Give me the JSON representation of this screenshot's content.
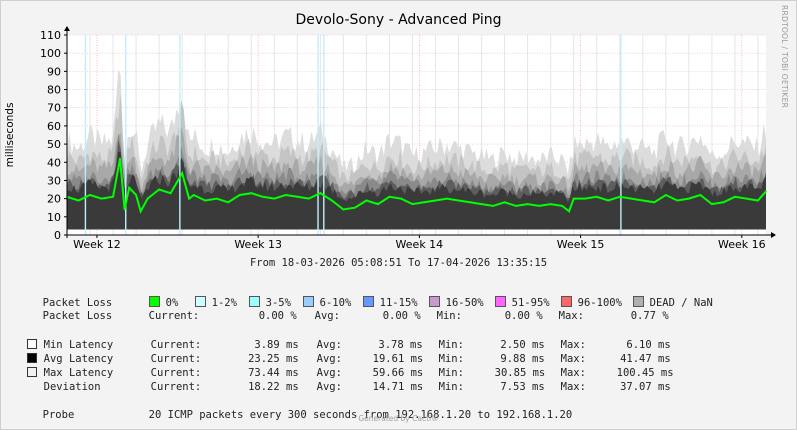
{
  "title": "Devolo-Sony - Advanced Ping",
  "side_credit": "RRDTOOL / TOBI OETIKER",
  "chart_data": {
    "type": "line",
    "title": "Devolo-Sony - Advanced Ping",
    "ylabel": "milliseconds",
    "ylim": [
      0,
      110
    ],
    "yticks": [
      0,
      10,
      20,
      30,
      40,
      50,
      60,
      70,
      80,
      90,
      100,
      110
    ],
    "xlim": [
      0,
      30.35
    ],
    "xticks": [
      {
        "label": "Week 12",
        "x": 1.3
      },
      {
        "label": "Week 13",
        "x": 8.3
      },
      {
        "label": "Week 14",
        "x": 15.3
      },
      {
        "label": "Week 15",
        "x": 22.3
      },
      {
        "label": "Week 16",
        "x": 29.3
      }
    ],
    "grid": true,
    "series": [
      {
        "name": "Avg Latency",
        "color": "#00ff00",
        "x": [
          0,
          0.5,
          1,
          1.5,
          2,
          2.3,
          2.5,
          2.7,
          3,
          3.2,
          3.5,
          4,
          4.5,
          5,
          5.3,
          5.5,
          6,
          6.5,
          7,
          7.5,
          8,
          8.5,
          9,
          9.5,
          10,
          10.5,
          11,
          11.5,
          12,
          12.5,
          13,
          13.5,
          14,
          14.5,
          15,
          15.5,
          16,
          16.5,
          17,
          17.5,
          18,
          18.5,
          19,
          19.5,
          20,
          20.5,
          21,
          21.5,
          21.8,
          22,
          22.5,
          23,
          23.5,
          24,
          24.5,
          25,
          25.5,
          26,
          26.5,
          27,
          27.5,
          28,
          28.5,
          29,
          29.5,
          30,
          30.35
        ],
        "y": [
          21,
          19,
          22,
          20,
          21,
          42,
          14,
          26,
          22,
          13,
          20,
          25,
          23,
          34,
          20,
          22,
          19,
          20,
          18,
          22,
          23,
          21,
          20,
          22,
          21,
          20,
          23,
          19,
          14,
          15,
          19,
          17,
          21,
          20,
          17,
          18,
          19,
          20,
          19,
          18,
          17,
          16,
          18,
          16,
          17,
          16,
          17,
          16,
          13,
          20,
          20,
          21,
          19,
          21,
          20,
          19,
          18,
          22,
          19,
          20,
          22,
          17,
          18,
          21,
          20,
          19,
          24
        ]
      },
      {
        "name": "Min Latency",
        "color": "#ffffff",
        "x": [
          0,
          30.35
        ],
        "y": [
          3.78,
          3.78
        ]
      },
      {
        "name": "Max Latency",
        "color": "#e8e8e8",
        "x": [
          0,
          30.35
        ],
        "y": [
          59.66,
          59.66
        ]
      }
    ],
    "legend": {
      "packet_loss_label": "Packet Loss",
      "packet_loss_ranges": [
        {
          "label": "0%",
          "color": "#00ff00"
        },
        {
          "label": "1-2%",
          "color": "#ccffff"
        },
        {
          "label": "3-5%",
          "color": "#99ffff"
        },
        {
          "label": "6-10%",
          "color": "#99ccff"
        },
        {
          "label": "11-15%",
          "color": "#6699ff"
        },
        {
          "label": "16-50%",
          "color": "#cc99cc"
        },
        {
          "label": "51-95%",
          "color": "#ff66ff"
        },
        {
          "label": "96-100%",
          "color": "#ff6666"
        },
        {
          "label": "DEAD / NaN",
          "color": "#b0b0b0"
        }
      ]
    }
  },
  "time_range": "From 18-03-2026 05:08:51 To 17-04-2026 13:35:15",
  "stats": {
    "packet_loss_row": {
      "name": "Packet Loss",
      "current": "0.00 %",
      "avg": "0.00 %",
      "min": "0.00 %",
      "max": "0.77 %"
    },
    "min_latency": {
      "name": "Min Latency",
      "swatch": "#ffffff",
      "current": "3.89 ms",
      "avg": "3.78 ms",
      "min": "2.50 ms",
      "max": "6.10 ms"
    },
    "avg_latency": {
      "name": "Avg Latency",
      "swatch": "#000000",
      "current": "23.25 ms",
      "avg": "19.61 ms",
      "min": "9.88 ms",
      "max": "41.47 ms"
    },
    "max_latency": {
      "name": "Max Latency",
      "swatch": "#f0f0f0",
      "current": "73.44 ms",
      "avg": "59.66 ms",
      "min": "30.85 ms",
      "max": "100.45 ms"
    },
    "deviation": {
      "name": "Deviation",
      "current": "18.22 ms",
      "avg": "14.71 ms",
      "min": "7.53 ms",
      "max": "37.07 ms"
    }
  },
  "labels": {
    "current": "Current:",
    "avg": "Avg:",
    "min": "Min:",
    "max": "Max:"
  },
  "probe": {
    "label": "Probe",
    "text": "20 ICMP packets every 300 seconds from 192.168.1.20 to 192.168.1.20"
  },
  "footer": "Generated by Cacti®"
}
